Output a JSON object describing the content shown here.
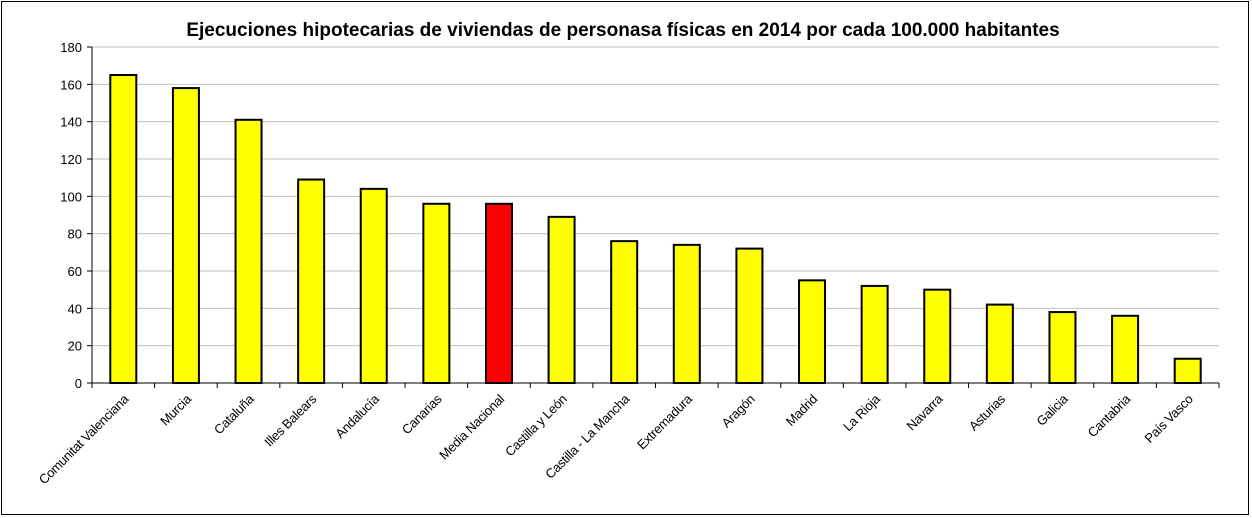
{
  "chart_data": {
    "type": "bar",
    "title": "Ejecuciones hipotecarias de viviendas de personasa físicas en 2014 por cada 100.000 habitantes",
    "xlabel": "",
    "ylabel": "",
    "ylim": [
      0,
      180
    ],
    "yticks": [
      0,
      20,
      40,
      60,
      80,
      100,
      120,
      140,
      160,
      180
    ],
    "grid": true,
    "legend": "none",
    "categories": [
      "Comunitat Valenciana",
      "Murcia",
      "Cataluña",
      "Illes Balears",
      "Andalucía",
      "Canarias",
      "Media Nacional",
      "Castilla y León",
      "Castilla - La Mancha",
      "Extremadura",
      "Aragón",
      "Madrid",
      "La Rioja",
      "Navarra",
      "Asturias",
      "Galicia",
      "Cantabria",
      "País Vasco"
    ],
    "values": [
      165,
      158,
      141,
      109,
      104,
      96,
      96,
      89,
      76,
      74,
      72,
      55,
      52,
      50,
      42,
      38,
      36,
      13
    ],
    "colors": {
      "default_bar": "#ffff00",
      "highlight_bar": "#ff0000",
      "bar_outline": "#000000",
      "gridline": "#c0c0c0"
    },
    "highlight_category": "Media Nacional"
  }
}
